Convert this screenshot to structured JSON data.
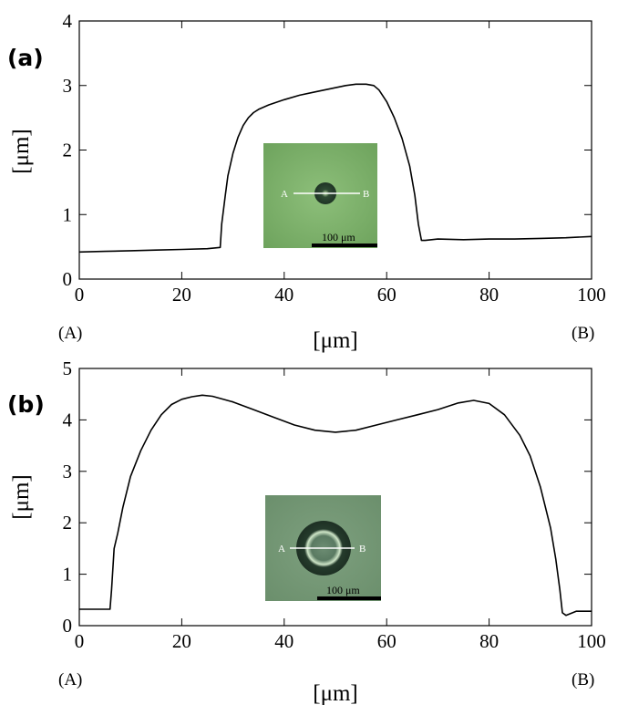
{
  "chart_data": [
    {
      "type": "line",
      "panel_label": "(a)",
      "xlabel": "[μm]",
      "ylabel": "[μm]",
      "xlim": [
        0,
        100
      ],
      "ylim": [
        0,
        4
      ],
      "xticks": [
        0,
        20,
        40,
        60,
        80,
        100
      ],
      "yticks": [
        0,
        1,
        2,
        3,
        4
      ],
      "x_start_label": "(A)",
      "x_end_label": "(B)",
      "inset": {
        "label_a": "A",
        "label_b": "B",
        "scale_bar": "100 μm",
        "particle": "small-dot"
      },
      "series": [
        {
          "x": [
            0,
            5,
            10,
            15,
            20,
            25,
            27.5,
            27.8,
            28.5,
            29,
            30,
            31,
            32,
            33,
            34,
            35,
            37,
            40,
            43,
            46,
            49,
            52,
            54,
            56,
            57.5,
            58.5,
            60,
            61.5,
            63,
            64.5,
            65.5,
            66.2,
            66.8,
            67.5,
            70,
            75,
            80,
            85,
            90,
            95,
            100
          ],
          "y": [
            0.42,
            0.43,
            0.44,
            0.45,
            0.46,
            0.47,
            0.49,
            0.85,
            1.3,
            1.6,
            1.95,
            2.2,
            2.38,
            2.5,
            2.58,
            2.63,
            2.7,
            2.78,
            2.85,
            2.9,
            2.95,
            3.0,
            3.02,
            3.02,
            3.0,
            2.93,
            2.75,
            2.5,
            2.18,
            1.75,
            1.3,
            0.85,
            0.6,
            0.6,
            0.62,
            0.61,
            0.62,
            0.62,
            0.63,
            0.64,
            0.66
          ]
        }
      ]
    },
    {
      "type": "line",
      "panel_label": "(b)",
      "xlabel": "[μm]",
      "ylabel": "[μm]",
      "xlim": [
        0,
        100
      ],
      "ylim": [
        0,
        5
      ],
      "xticks": [
        0,
        20,
        40,
        60,
        80,
        100
      ],
      "yticks": [
        0,
        1,
        2,
        3,
        4,
        5
      ],
      "x_start_label": "(A)",
      "x_end_label": "(B)",
      "inset": {
        "label_a": "A",
        "label_b": "B",
        "scale_bar": "100 μm",
        "particle": "ring"
      },
      "series": [
        {
          "x": [
            0,
            3,
            6,
            6.3,
            6.8,
            7.5,
            8.5,
            10,
            12,
            14,
            16,
            18,
            20,
            22,
            24,
            26,
            30,
            34,
            38,
            42,
            46,
            50,
            54,
            58,
            62,
            66,
            70,
            74,
            77,
            80,
            83,
            86,
            88,
            90,
            92,
            93,
            93.8,
            94.3,
            95,
            97,
            100
          ],
          "y": [
            0.32,
            0.32,
            0.32,
            0.7,
            1.5,
            1.8,
            2.3,
            2.9,
            3.4,
            3.8,
            4.1,
            4.3,
            4.4,
            4.45,
            4.48,
            4.46,
            4.35,
            4.2,
            4.05,
            3.9,
            3.8,
            3.76,
            3.8,
            3.9,
            4.0,
            4.1,
            4.2,
            4.33,
            4.38,
            4.32,
            4.1,
            3.7,
            3.3,
            2.7,
            1.9,
            1.3,
            0.7,
            0.25,
            0.2,
            0.28,
            0.28
          ]
        }
      ]
    }
  ]
}
